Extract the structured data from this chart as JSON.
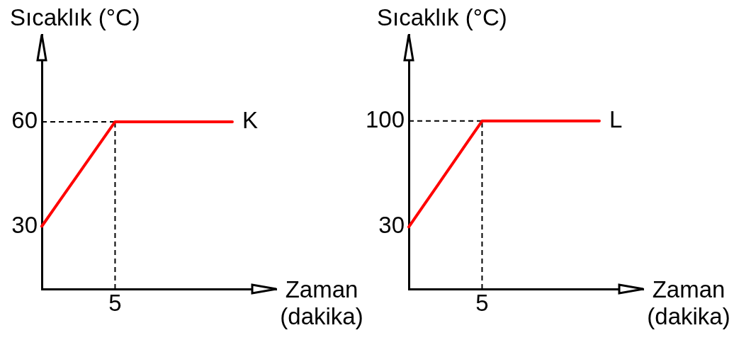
{
  "chart_data": [
    {
      "type": "line",
      "xlabel": "Zaman (dakika)",
      "ylabel": "Sıcaklık (°C)",
      "categories": [
        null,
        null,
        null,
        null,
        null,
        "5",
        null,
        null,
        null,
        null,
        null,
        null,
        null,
        null,
        null,
        null,
        null
      ],
      "series": [
        {
          "name": "K",
          "color": "#ff0000",
          "values": [
            30,
            36,
            42,
            48,
            54,
            60,
            60,
            60,
            60,
            60,
            60,
            60,
            60,
            60,
            null,
            null,
            null
          ]
        }
      ],
      "ylim": [
        12,
        85
      ],
      "yticks": [
        30,
        60
      ],
      "ref_lines": [
        {
          "axis": "y",
          "value": 60,
          "color": "#000000",
          "line_style": "dashed"
        },
        {
          "axis": "x",
          "value": "5",
          "color": "#000000",
          "line_style": "dashed"
        }
      ],
      "grid": false,
      "legend": false,
      "marker": "none",
      "line_style": "solid"
    },
    {
      "type": "line",
      "xlabel": "Zaman (dakika)",
      "ylabel": "Sıcaklık (°C)",
      "categories": [
        null,
        null,
        null,
        null,
        null,
        "5",
        null,
        null,
        null,
        null,
        null,
        null,
        null,
        null,
        null,
        null,
        null
      ],
      "series": [
        {
          "name": "L",
          "color": "#ff0000",
          "values": [
            30,
            44,
            58,
            72,
            86,
            100,
            100,
            100,
            100,
            100,
            100,
            100,
            100,
            100,
            null,
            null,
            null
          ]
        }
      ],
      "ylim": [
        -11,
        157
      ],
      "yticks": [
        30,
        100
      ],
      "ref_lines": [
        {
          "axis": "y",
          "value": 100,
          "color": "#000000",
          "line_style": "dashed"
        },
        {
          "axis": "x",
          "value": "5",
          "color": "#000000",
          "line_style": "dashed"
        }
      ],
      "grid": false,
      "legend": false,
      "marker": "none",
      "line_style": "solid"
    }
  ]
}
